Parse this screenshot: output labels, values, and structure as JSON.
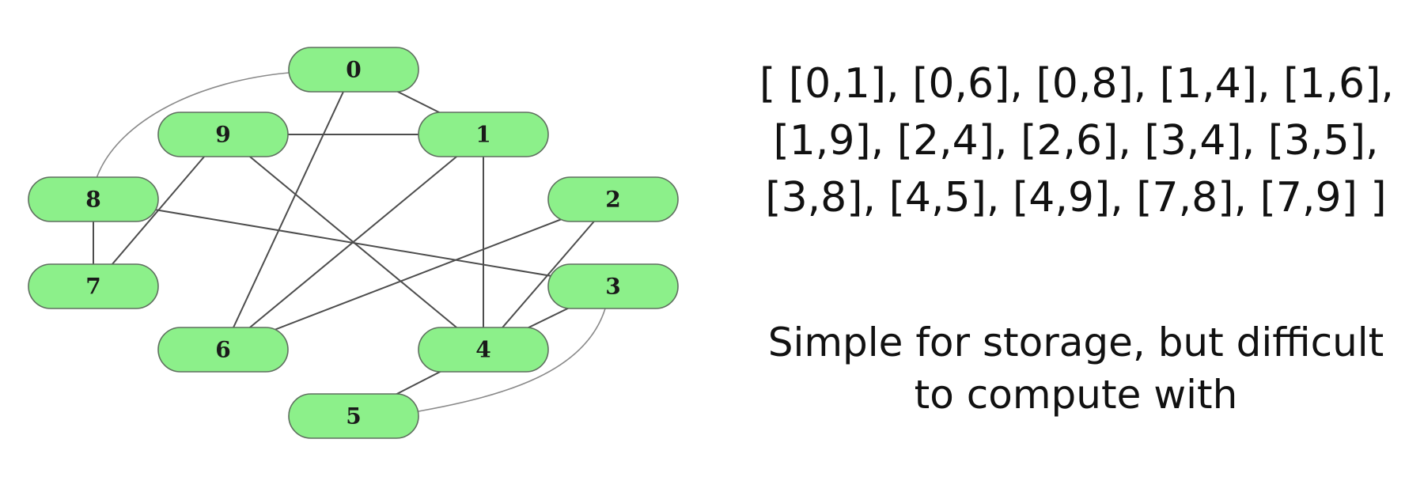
{
  "graph": {
    "nodes": [
      {
        "id": "0",
        "label": "0"
      },
      {
        "id": "1",
        "label": "1"
      },
      {
        "id": "2",
        "label": "2"
      },
      {
        "id": "3",
        "label": "3"
      },
      {
        "id": "4",
        "label": "4"
      },
      {
        "id": "5",
        "label": "5"
      },
      {
        "id": "6",
        "label": "6"
      },
      {
        "id": "7",
        "label": "7"
      },
      {
        "id": "8",
        "label": "8"
      },
      {
        "id": "9",
        "label": "9"
      }
    ],
    "edges": [
      [
        "0",
        "1"
      ],
      [
        "0",
        "6"
      ],
      [
        "0",
        "8"
      ],
      [
        "1",
        "4"
      ],
      [
        "1",
        "6"
      ],
      [
        "1",
        "9"
      ],
      [
        "2",
        "4"
      ],
      [
        "2",
        "6"
      ],
      [
        "3",
        "4"
      ],
      [
        "3",
        "5"
      ],
      [
        "3",
        "8"
      ],
      [
        "4",
        "5"
      ],
      [
        "4",
        "9"
      ],
      [
        "7",
        "8"
      ],
      [
        "7",
        "9"
      ]
    ],
    "node_color": "#8cf08a",
    "edge_color": "#4d4d4d"
  },
  "edge_list": {
    "lines": [
      "[ [0,1], [0,6], [0,8], [1,4], [1,6],",
      "[1,9], [2,4], [2,6], [3,4], [3,5],",
      "[3,8], [4,5], [4,9], [7,8], [7,9] ]"
    ]
  },
  "caption": {
    "lines": [
      "Simple for storage, but difficult",
      "to compute with"
    ]
  }
}
